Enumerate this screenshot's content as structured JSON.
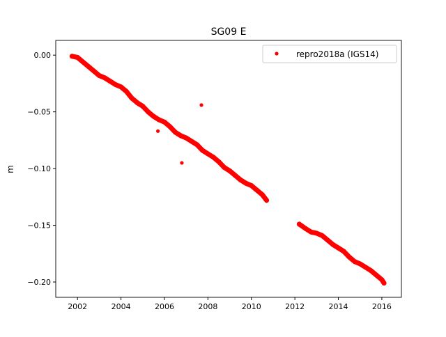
{
  "chart_data": {
    "type": "scatter",
    "title": "SG09 E",
    "xlabel": "",
    "ylabel": "m",
    "xlim": [
      2001.0,
      2016.9
    ],
    "ylim": [
      -0.2135,
      0.013
    ],
    "xticks": [
      2002,
      2004,
      2006,
      2008,
      2010,
      2012,
      2014,
      2016
    ],
    "xtick_labels": [
      "2002",
      "2004",
      "2006",
      "2008",
      "2010",
      "2012",
      "2014",
      "2016"
    ],
    "yticks": [
      0.0,
      -0.05,
      -0.1,
      -0.15,
      -0.2
    ],
    "ytick_labels": [
      "0.00",
      "−0.05",
      "−0.10",
      "−0.15",
      "−0.20"
    ],
    "legend": {
      "position": "top-right",
      "entries": [
        "repro2018a (IGS14)"
      ]
    },
    "color": "#ff0000",
    "grid": false,
    "series": [
      {
        "name": "repro2018a (IGS14)",
        "segments": [
          {
            "x": [
              2001.75,
              2002.0,
              2002.25,
              2002.5,
              2002.75,
              2003.0,
              2003.25,
              2003.5,
              2003.75,
              2004.0,
              2004.25,
              2004.5,
              2004.75,
              2005.0,
              2005.25,
              2005.5,
              2005.75,
              2006.0,
              2006.25,
              2006.5,
              2006.75,
              2007.0,
              2007.25,
              2007.5,
              2007.75,
              2008.0,
              2008.25,
              2008.5,
              2008.75,
              2009.0,
              2009.25,
              2009.5,
              2009.75,
              2010.0,
              2010.25,
              2010.5,
              2010.7
            ],
            "y": [
              -0.001,
              -0.002,
              -0.006,
              -0.01,
              -0.014,
              -0.018,
              -0.02,
              -0.023,
              -0.026,
              -0.028,
              -0.032,
              -0.038,
              -0.042,
              -0.045,
              -0.05,
              -0.054,
              -0.057,
              -0.059,
              -0.063,
              -0.068,
              -0.071,
              -0.073,
              -0.076,
              -0.079,
              -0.084,
              -0.087,
              -0.09,
              -0.094,
              -0.099,
              -0.102,
              -0.106,
              -0.11,
              -0.113,
              -0.115,
              -0.119,
              -0.123,
              -0.128
            ]
          },
          {
            "x": [
              2012.2,
              2012.5,
              2012.75,
              2013.0,
              2013.25,
              2013.5,
              2013.75,
              2014.0,
              2014.25,
              2014.5,
              2014.75,
              2015.0,
              2015.25,
              2015.5,
              2015.75,
              2016.0,
              2016.1
            ],
            "y": [
              -0.149,
              -0.153,
              -0.156,
              -0.157,
              -0.159,
              -0.163,
              -0.167,
              -0.17,
              -0.173,
              -0.178,
              -0.182,
              -0.184,
              -0.187,
              -0.19,
              -0.194,
              -0.198,
              -0.201
            ]
          }
        ],
        "outliers": {
          "x": [
            2005.7,
            2006.8,
            2007.7
          ],
          "y": [
            -0.067,
            -0.095,
            -0.044
          ]
        }
      }
    ]
  }
}
